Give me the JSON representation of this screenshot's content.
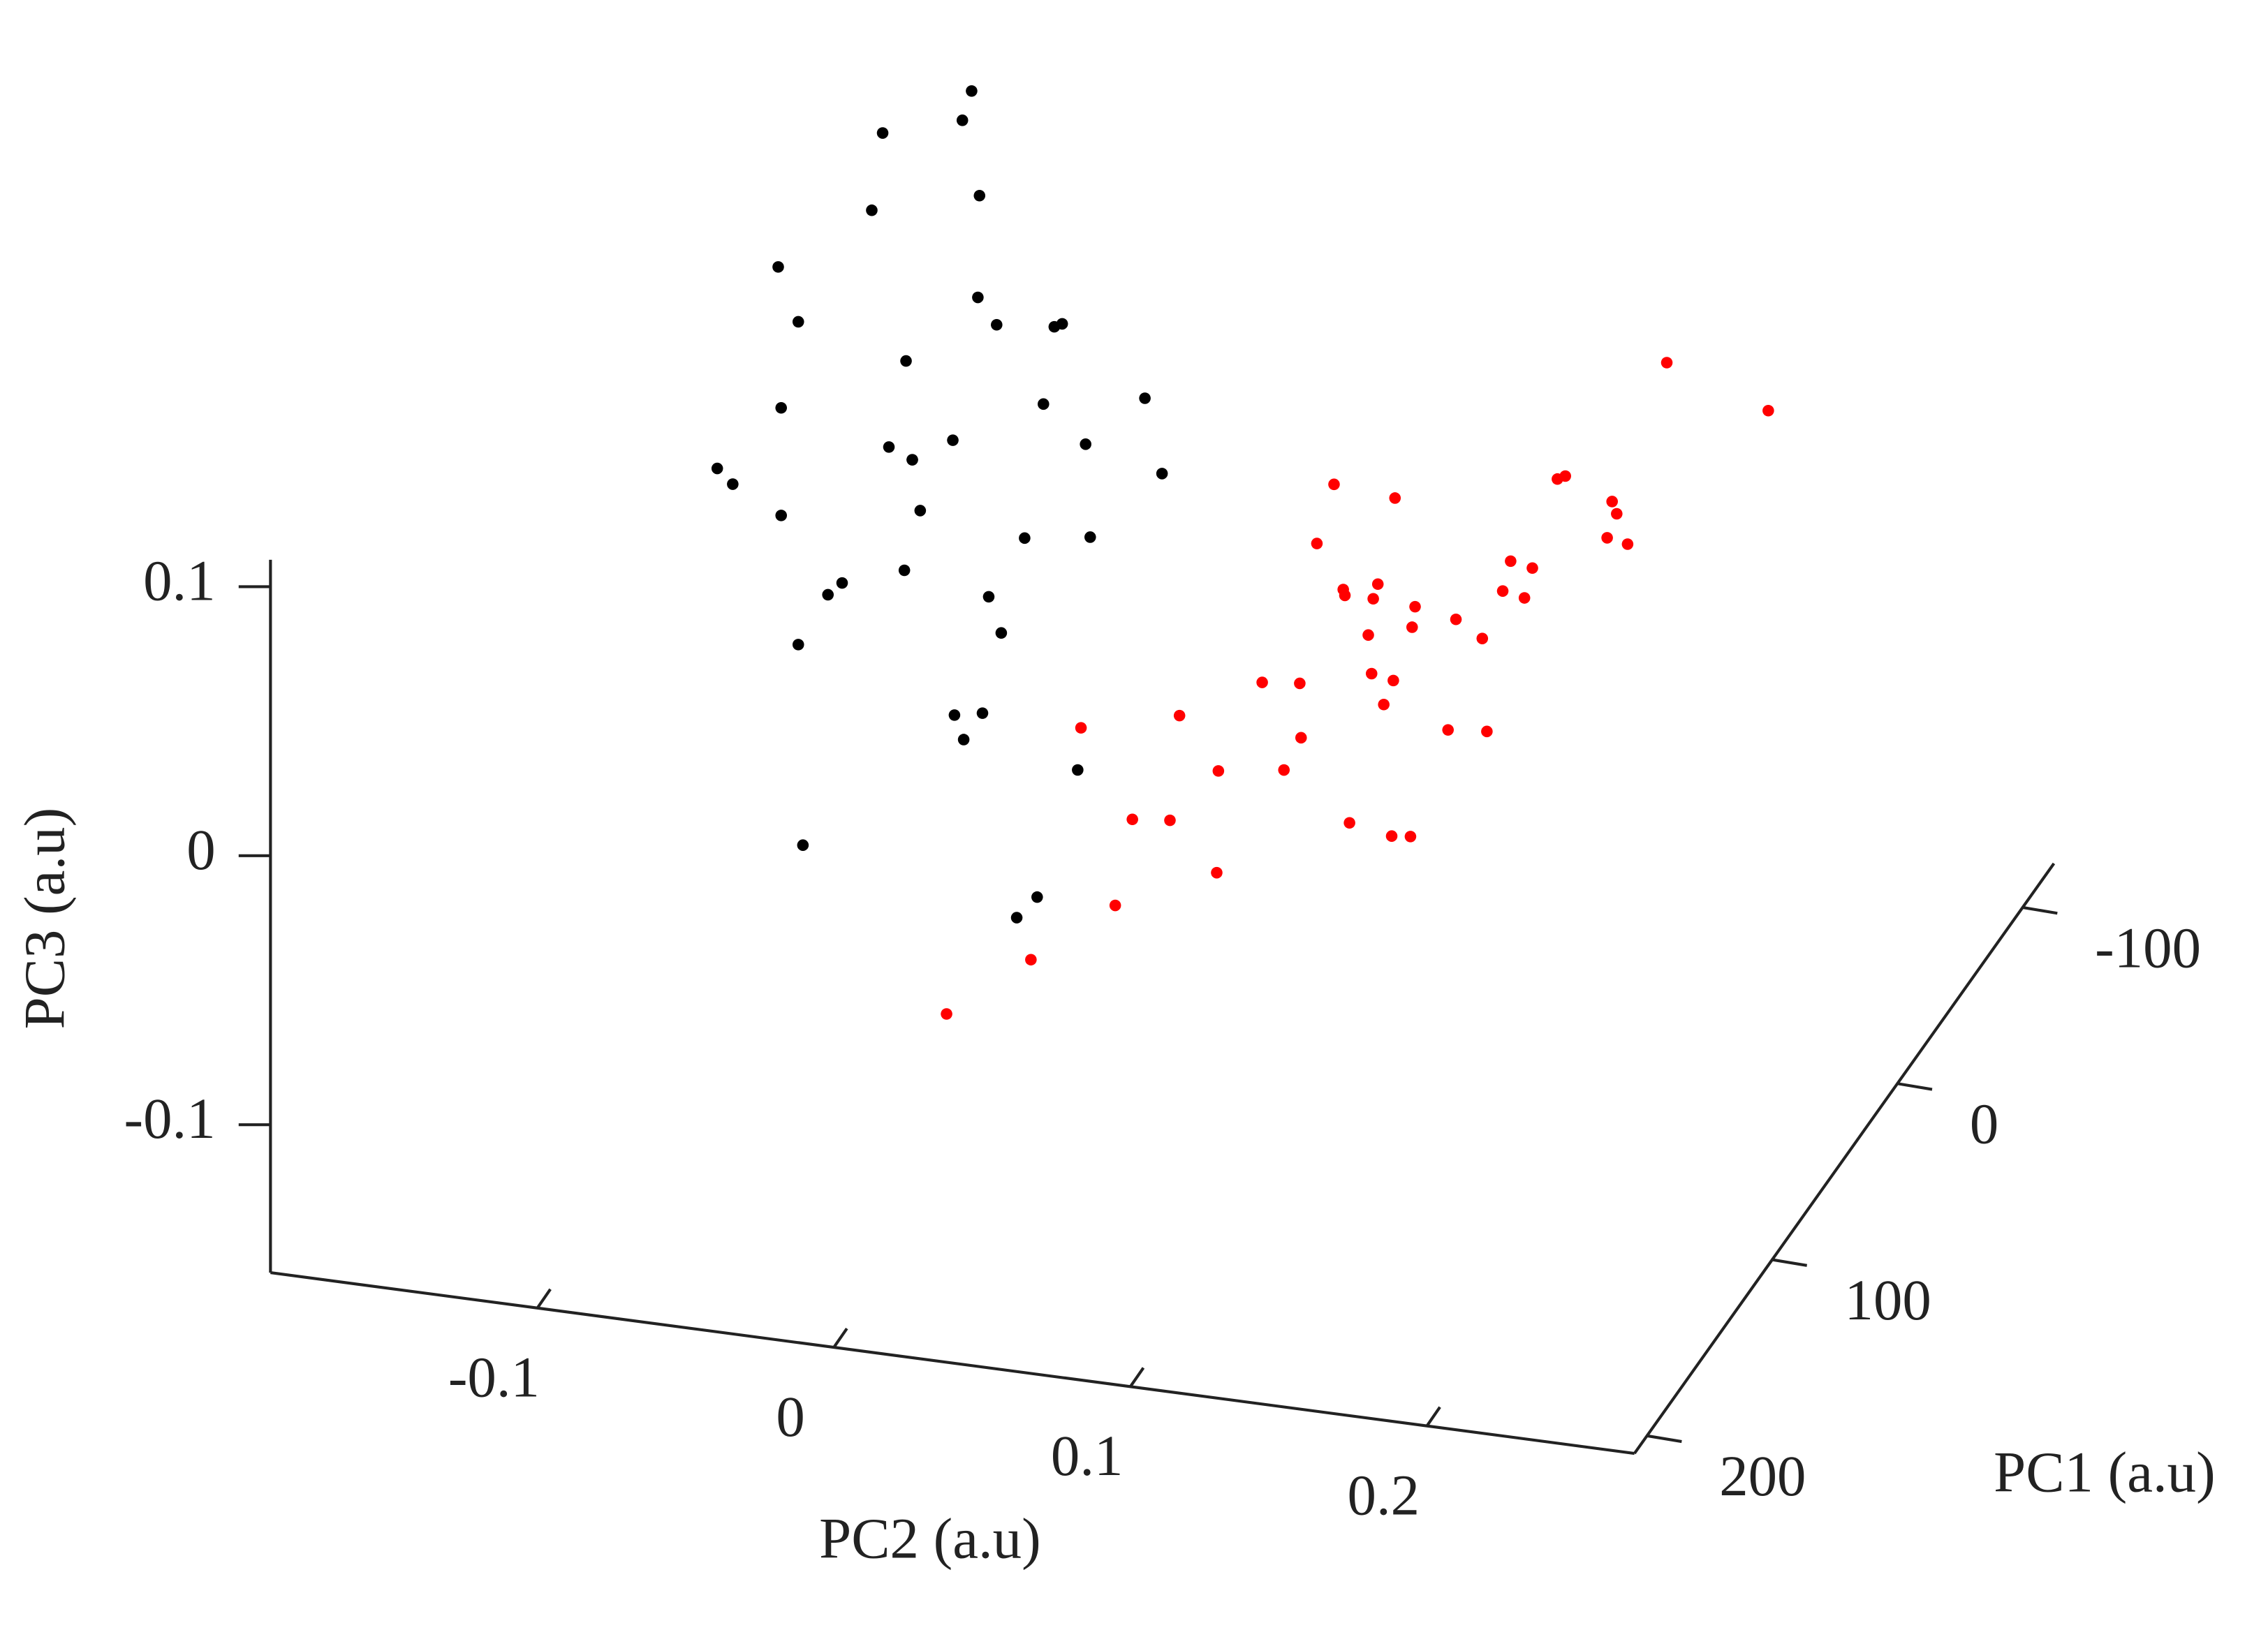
{
  "chart_data": {
    "type": "scatter3d",
    "x_label": "PC1 (a.u)",
    "y_label": "PC2 (a.u)",
    "z_label": "PC3 (a.u)",
    "xlim": [
      -125,
      210
    ],
    "ylim": [
      -0.19,
      0.27
    ],
    "zlim": [
      -0.155,
      0.11
    ],
    "xticks": [
      -100,
      0,
      100,
      200
    ],
    "yticks": [
      -0.1,
      0,
      0.1,
      0.2
    ],
    "zticks": [
      -0.1,
      0,
      0.1
    ],
    "series": [
      {
        "color": "#000000",
        "x": [
          100,
          80,
          120,
          90,
          110,
          70,
          130,
          95,
          105,
          85,
          115,
          60,
          140,
          100,
          75,
          125,
          90,
          110,
          100,
          80,
          120,
          95,
          105,
          65,
          135,
          100,
          85,
          115,
          90,
          110,
          100,
          70,
          130,
          95,
          105,
          80,
          120,
          100,
          90,
          110
        ],
        "y": [
          -0.02,
          0.0,
          -0.04,
          0.02,
          -0.06,
          -0.01,
          0.01,
          -0.03,
          0.03,
          -0.05,
          0.0,
          -0.02,
          -0.04,
          0.04,
          0.02,
          -0.07,
          -0.01,
          0.01,
          -0.03,
          0.05,
          -0.05,
          0.0,
          0.02,
          -0.08,
          0.03,
          -0.02,
          -0.04,
          0.01,
          0.06,
          -0.06,
          0.0,
          -0.03,
          -0.01,
          0.02,
          -0.02,
          0.03,
          -0.05,
          0.01,
          -0.09,
          0.04
        ],
        "z": [
          0.1,
          0.14,
          0.06,
          0.12,
          0.08,
          0.18,
          0.02,
          0.1,
          0.16,
          0.04,
          0.12,
          0.2,
          -0.02,
          0.08,
          0.14,
          0.1,
          0.0,
          0.06,
          0.22,
          0.12,
          0.04,
          0.16,
          0.08,
          0.14,
          -0.04,
          0.1,
          0.18,
          0.02,
          0.1,
          0.12,
          0.24,
          0.06,
          0.08,
          -0.06,
          0.14,
          0.1,
          0.16,
          0.04,
          0.08,
          0.0
        ]
      },
      {
        "color": "#ff0000",
        "x": [
          0,
          -40,
          40,
          -80,
          60,
          20,
          -20,
          -60,
          80,
          10,
          -10,
          -50,
          50,
          30,
          -30,
          -100,
          100,
          0,
          -70,
          70,
          15,
          -15,
          -45,
          45,
          25,
          -25,
          -90,
          90,
          5,
          -5,
          -35,
          35,
          55,
          -55,
          120,
          -110,
          0,
          20,
          -20,
          40,
          -40,
          60,
          -60,
          10,
          -10
        ],
        "y": [
          0.1,
          0.12,
          0.08,
          0.14,
          0.05,
          0.1,
          0.11,
          0.13,
          0.04,
          0.06,
          0.14,
          0.1,
          0.09,
          0.12,
          0.08,
          0.15,
          0.02,
          0.13,
          0.11,
          0.07,
          0.09,
          0.1,
          0.16,
          0.06,
          0.11,
          0.09,
          0.12,
          0.05,
          0.03,
          0.17,
          0.08,
          0.1,
          0.12,
          0.07,
          0.0,
          0.18,
          0.08,
          0.14,
          0.06,
          0.1,
          0.13,
          0.02,
          0.15,
          0.11,
          0.07
        ],
        "z": [
          -0.03,
          -0.02,
          -0.04,
          -0.01,
          -0.05,
          0.0,
          -0.06,
          0.01,
          -0.07,
          -0.03,
          0.0,
          -0.04,
          -0.02,
          0.02,
          -0.05,
          0.03,
          -0.08,
          -0.01,
          -0.03,
          -0.06,
          0.01,
          -0.02,
          0.0,
          -0.04,
          -0.07,
          0.02,
          -0.01,
          -0.03,
          -0.05,
          0.03,
          -0.02,
          -0.06,
          0.0,
          -0.04,
          -0.09,
          0.01,
          0.04,
          -0.03,
          -0.05,
          0.03,
          -0.01,
          -0.02,
          0.0,
          -0.08,
          0.01
        ]
      }
    ]
  }
}
